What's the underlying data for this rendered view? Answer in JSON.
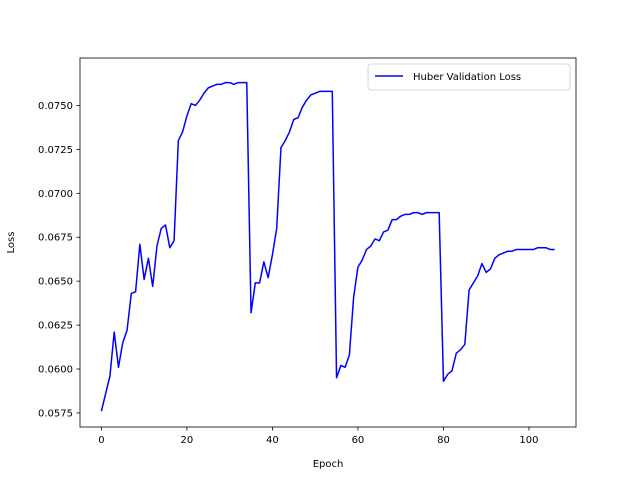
{
  "chart_data": {
    "type": "line",
    "title": "",
    "xlabel": "Epoch",
    "ylabel": "Loss",
    "xlim": [
      -5,
      111
    ],
    "ylim": [
      0.0567,
      0.0777
    ],
    "xticks": [
      0,
      20,
      40,
      60,
      80,
      100
    ],
    "yticks": [
      0.0575,
      0.06,
      0.0625,
      0.065,
      0.0675,
      0.07,
      0.0725,
      0.075
    ],
    "xtick_labels": [
      "0",
      "20",
      "40",
      "60",
      "80",
      "100"
    ],
    "ytick_labels": [
      "0.0575",
      "0.0600",
      "0.0625",
      "0.0650",
      "0.0675",
      "0.0700",
      "0.0725",
      "0.0750"
    ],
    "grid": false,
    "legend_position": "top-right",
    "series": [
      {
        "name": "Huber Validation Loss",
        "color": "#0000ff",
        "x": [
          0,
          1,
          2,
          3,
          4,
          5,
          6,
          7,
          8,
          9,
          10,
          11,
          12,
          13,
          14,
          15,
          16,
          17,
          18,
          19,
          20,
          21,
          22,
          23,
          24,
          25,
          26,
          27,
          28,
          29,
          30,
          31,
          32,
          33,
          34,
          35,
          36,
          37,
          38,
          39,
          40,
          41,
          42,
          43,
          44,
          45,
          46,
          47,
          48,
          49,
          50,
          51,
          52,
          53,
          54,
          55,
          56,
          57,
          58,
          59,
          60,
          61,
          62,
          63,
          64,
          65,
          66,
          67,
          68,
          69,
          70,
          71,
          72,
          73,
          74,
          75,
          76,
          77,
          78,
          79,
          80,
          81,
          82,
          83,
          84,
          85,
          86,
          87,
          88,
          89,
          90,
          91,
          92,
          93,
          94,
          95,
          96,
          97,
          98,
          99,
          100,
          101,
          102,
          103,
          104,
          105,
          106
        ],
        "values": [
          0.0576,
          0.0586,
          0.0596,
          0.0621,
          0.0601,
          0.0615,
          0.0622,
          0.0643,
          0.0644,
          0.0671,
          0.0651,
          0.0663,
          0.0647,
          0.067,
          0.068,
          0.0682,
          0.0669,
          0.0673,
          0.073,
          0.0735,
          0.0744,
          0.0751,
          0.075,
          0.0753,
          0.0757,
          0.076,
          0.0761,
          0.0762,
          0.0762,
          0.0763,
          0.0763,
          0.0762,
          0.0763,
          0.0763,
          0.0763,
          0.0632,
          0.0649,
          0.0649,
          0.0661,
          0.0652,
          0.0665,
          0.068,
          0.0726,
          0.073,
          0.0735,
          0.0742,
          0.0743,
          0.0749,
          0.0753,
          0.0756,
          0.0757,
          0.0758,
          0.0758,
          0.0758,
          0.0758,
          0.0595,
          0.0602,
          0.0601,
          0.0608,
          0.0641,
          0.0658,
          0.0662,
          0.0668,
          0.067,
          0.0674,
          0.0673,
          0.0678,
          0.0679,
          0.0685,
          0.0685,
          0.0687,
          0.0688,
          0.0688,
          0.0689,
          0.0689,
          0.0688,
          0.0689,
          0.0689,
          0.0689,
          0.0689,
          0.0593,
          0.0597,
          0.0599,
          0.0609,
          0.0611,
          0.0614,
          0.0645,
          0.0649,
          0.0653,
          0.066,
          0.0655,
          0.0657,
          0.0663,
          0.0665,
          0.0666,
          0.0667,
          0.0667,
          0.0668,
          0.0668,
          0.0668,
          0.0668,
          0.0668,
          0.0669,
          0.0669,
          0.0669,
          0.0668,
          0.0668
        ]
      }
    ]
  }
}
